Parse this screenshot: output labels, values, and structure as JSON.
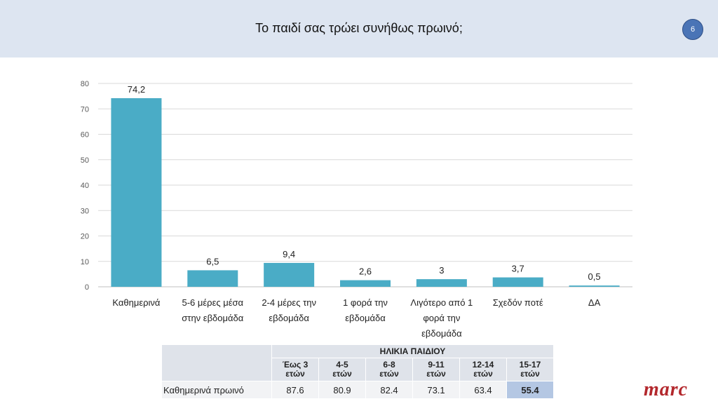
{
  "header": {
    "title": "Το παιδί σας τρώει συνήθως πρωινό;",
    "page_number": "6"
  },
  "chart_data": {
    "type": "bar",
    "categories": [
      [
        "Καθημερινά"
      ],
      [
        "5-6 μέρες μέσα",
        "στην εβδομάδα"
      ],
      [
        "2-4 μέρες την",
        "εβδομάδα"
      ],
      [
        "1 φορά την",
        "εβδομάδα"
      ],
      [
        "Λιγότερο από 1",
        "φορά την",
        "εβδομάδα"
      ],
      [
        "Σχεδόν ποτέ"
      ],
      [
        "ΔΑ"
      ]
    ],
    "values": [
      74.2,
      6.5,
      9.4,
      2.6,
      3,
      3.7,
      0.5
    ],
    "value_labels": [
      "74,2",
      "6,5",
      "9,4",
      "2,6",
      "3",
      "3,7",
      "0,5"
    ],
    "ylim": [
      0,
      80
    ],
    "yticks": [
      0,
      10,
      20,
      30,
      40,
      50,
      60,
      70,
      80
    ],
    "grid": true,
    "bar_color": "#4aacc6",
    "title": "",
    "xlabel": "",
    "ylabel": ""
  },
  "table": {
    "group_header": "ΗΛΙΚΙΑ ΠΑΙΔΙΟΥ",
    "columns": [
      [
        "Έως 3",
        "ετών"
      ],
      [
        "4-5",
        "ετών"
      ],
      [
        "6-8",
        "ετών"
      ],
      [
        "9-11",
        "ετών"
      ],
      [
        "12-14",
        "ετών"
      ],
      [
        "15-17",
        "ετών"
      ]
    ],
    "row_label": "Καθημερινά πρωινό",
    "values": [
      "87.6",
      "80.9",
      "82.4",
      "73.1",
      "63.4",
      "55.4"
    ],
    "highlight_color": "#b4c7e3"
  },
  "logo": {
    "text": "marc",
    "color": "#b3282d"
  }
}
